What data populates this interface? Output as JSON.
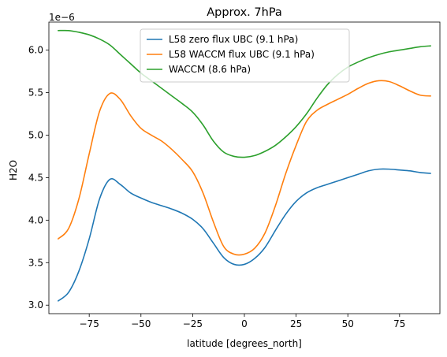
{
  "chart_data": {
    "type": "line",
    "title": "Approx. 7hPa",
    "xlabel": "latitude [degrees_north]",
    "ylabel": "H2O",
    "offset_text": "1e−6",
    "xlim": [
      -94.5,
      94.5
    ],
    "ylim": [
      2.9,
      6.33
    ],
    "x_ticks": [
      -75,
      -50,
      -25,
      0,
      25,
      50,
      75
    ],
    "x_tick_labels": [
      "−75",
      "−50",
      "−25",
      "0",
      "25",
      "50",
      "75"
    ],
    "y_ticks": [
      3.0,
      3.5,
      4.0,
      4.5,
      5.0,
      5.5,
      6.0
    ],
    "y_tick_labels": [
      "3.0",
      "3.5",
      "4.0",
      "4.5",
      "5.0",
      "5.5",
      "6.0"
    ],
    "grid": false,
    "legend_placement": "upper center",
    "x": [
      -90,
      -85,
      -80,
      -75,
      -70,
      -65,
      -60,
      -55,
      -50,
      -45,
      -40,
      -35,
      -30,
      -25,
      -20,
      -15,
      -10,
      -5,
      0,
      5,
      10,
      15,
      20,
      25,
      30,
      35,
      40,
      45,
      50,
      55,
      60,
      65,
      70,
      75,
      80,
      85,
      90
    ],
    "series": [
      {
        "name": "L58 zero flux UBC (9.1 hPa)",
        "color": "#1f77b4",
        "values": [
          3.05,
          3.15,
          3.4,
          3.78,
          4.25,
          4.48,
          4.42,
          4.32,
          4.26,
          4.21,
          4.17,
          4.13,
          4.08,
          4.01,
          3.9,
          3.73,
          3.56,
          3.48,
          3.48,
          3.55,
          3.68,
          3.88,
          4.07,
          4.22,
          4.32,
          4.38,
          4.42,
          4.46,
          4.5,
          4.54,
          4.58,
          4.6,
          4.6,
          4.59,
          4.58,
          4.56,
          4.55
        ]
      },
      {
        "name": "L58 WACCM flux UBC (9.1 hPa)",
        "color": "#ff7f0e",
        "values": [
          3.78,
          3.9,
          4.25,
          4.78,
          5.28,
          5.49,
          5.42,
          5.23,
          5.08,
          5.0,
          4.93,
          4.83,
          4.71,
          4.57,
          4.32,
          3.98,
          3.69,
          3.6,
          3.6,
          3.67,
          3.85,
          4.17,
          4.55,
          4.88,
          5.16,
          5.29,
          5.36,
          5.42,
          5.48,
          5.55,
          5.61,
          5.64,
          5.63,
          5.58,
          5.52,
          5.47,
          5.46
        ]
      },
      {
        "name": "WACCM (8.6 hPa)",
        "color": "#2ca02c",
        "values": [
          6.23,
          6.23,
          6.21,
          6.18,
          6.13,
          6.06,
          5.95,
          5.84,
          5.73,
          5.64,
          5.55,
          5.46,
          5.37,
          5.27,
          5.12,
          4.93,
          4.8,
          4.75,
          4.74,
          4.76,
          4.81,
          4.88,
          4.98,
          5.1,
          5.25,
          5.43,
          5.59,
          5.71,
          5.8,
          5.86,
          5.91,
          5.95,
          5.98,
          6.0,
          6.02,
          6.04,
          6.05
        ]
      }
    ]
  }
}
